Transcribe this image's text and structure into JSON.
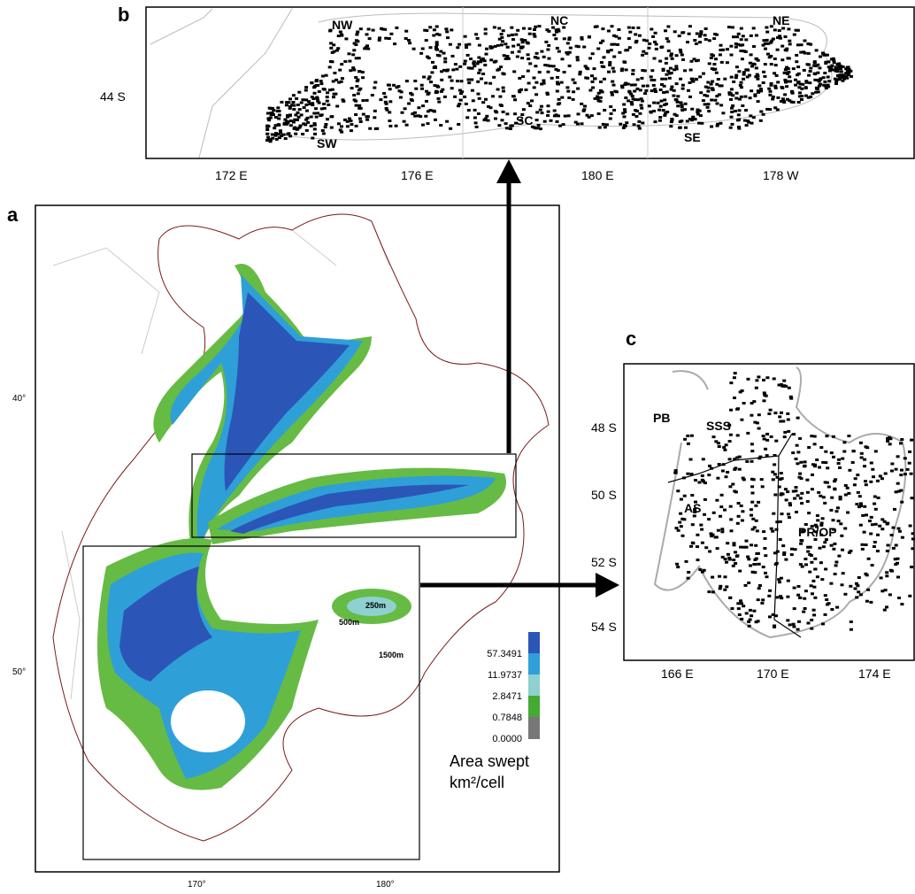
{
  "panel_labels": {
    "a": "a",
    "b": "b",
    "c": "c"
  },
  "panel_b": {
    "regions": [
      "NW",
      "NC",
      "NE",
      "SW",
      "SC",
      "SE"
    ],
    "y_labels": [
      "44 S"
    ],
    "x_labels": [
      "172 E",
      "176 E",
      "180 E",
      "178 W"
    ]
  },
  "panel_a": {
    "y_labels": [
      "40°",
      "50°"
    ],
    "x_labels": [
      "170°",
      "180°"
    ],
    "depth_labels": [
      "250m",
      "500m",
      "1500m"
    ],
    "legend": {
      "ticks": [
        "57.3491",
        "11.9737",
        "2.8471",
        "0.7848",
        "0.0000"
      ],
      "title": "Area swept",
      "unit": "km²/cell"
    }
  },
  "panel_c": {
    "regions": [
      "PB",
      "SSS",
      "AS",
      "PR/OP"
    ],
    "y_labels": [
      "48 S",
      "50 S",
      "52 S",
      "54 S"
    ],
    "x_labels": [
      "166 E",
      "170 E",
      "174 E"
    ]
  }
}
